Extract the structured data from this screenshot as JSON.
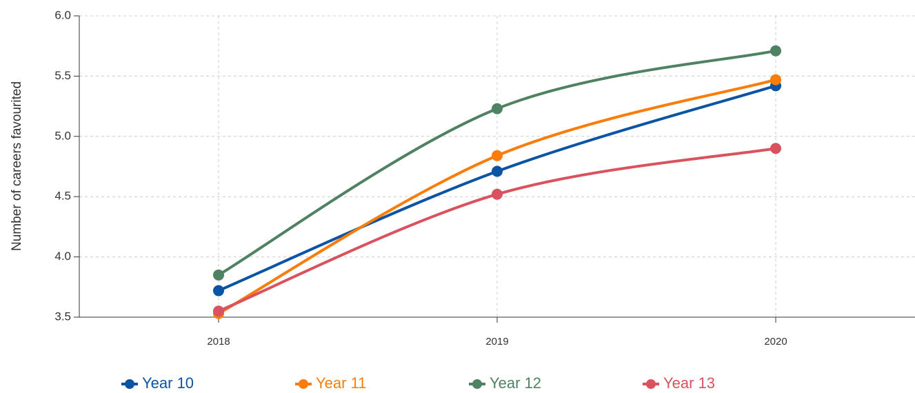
{
  "chart_data": {
    "type": "line",
    "y_label": "Number of careers favourited",
    "x": [
      2018,
      2019,
      2020
    ],
    "series": [
      {
        "name": "Year 10",
        "color": "#0b53a3",
        "values": [
          3.72,
          4.71,
          5.42
        ]
      },
      {
        "name": "Year 11",
        "color": "#fa7d0a",
        "values": [
          3.53,
          4.84,
          5.47
        ]
      },
      {
        "name": "Year 12",
        "color": "#4e8262",
        "values": [
          3.85,
          5.23,
          5.71
        ]
      },
      {
        "name": "Year 13",
        "color": "#d9525e",
        "values": [
          3.55,
          4.52,
          4.9
        ]
      }
    ],
    "xlim": [
      2017.5,
      2020.5
    ],
    "xticks": [
      2018,
      2019,
      2020
    ],
    "ylim": [
      3.5,
      6.0
    ],
    "yticks": [
      3.5,
      {
        "value": 4,
        "label": "4.0"
      },
      {
        "value": 4.5,
        "label": "4.5"
      },
      {
        "value": 5,
        "label": "5.0"
      },
      5.5,
      {
        "value": 6,
        "label": "6.0"
      }
    ],
    "grid": true,
    "legend": "bottom"
  }
}
